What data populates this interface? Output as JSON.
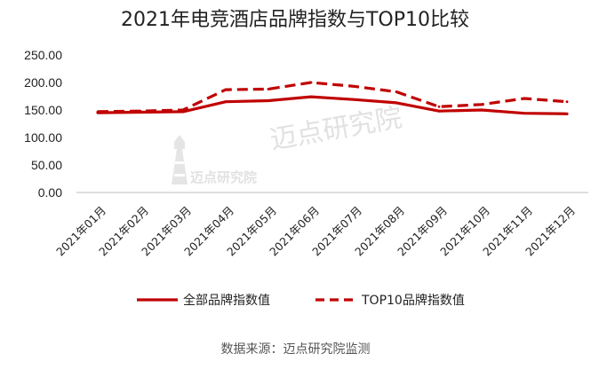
{
  "chart_data": {
    "type": "line",
    "title": "2021年电竞酒店品牌指数与TOP10比较",
    "categories": [
      "2021年01月",
      "2021年02月",
      "2021年03月",
      "2021年04月",
      "2021年05月",
      "2021年06月",
      "2021年07月",
      "2021年08月",
      "2021年09月",
      "2021年10月",
      "2021年11月",
      "2021年12月"
    ],
    "series": [
      {
        "name": "全部品牌指数值",
        "values": [
          145,
          146,
          147,
          165,
          167,
          174,
          169,
          163,
          148,
          150,
          144,
          143
        ],
        "color": "#c00000",
        "style": "solid"
      },
      {
        "name": "TOP10品牌指数值",
        "values": [
          147,
          148,
          150,
          187,
          188,
          200,
          193,
          183,
          156,
          160,
          171,
          165
        ],
        "color": "#c00000",
        "style": "dashed"
      }
    ],
    "yticks": [
      "0.00",
      "50.00",
      "100.00",
      "150.00",
      "200.00",
      "250.00"
    ],
    "ylim": [
      0,
      250
    ],
    "xlabel": "",
    "ylabel": "",
    "grid": false,
    "legend": "bottom"
  },
  "watermark": {
    "large": "迈点研究院",
    "small": "迈点研究院",
    "icon": "lighthouse-icon"
  },
  "source": "数据来源：迈点研究院监测"
}
